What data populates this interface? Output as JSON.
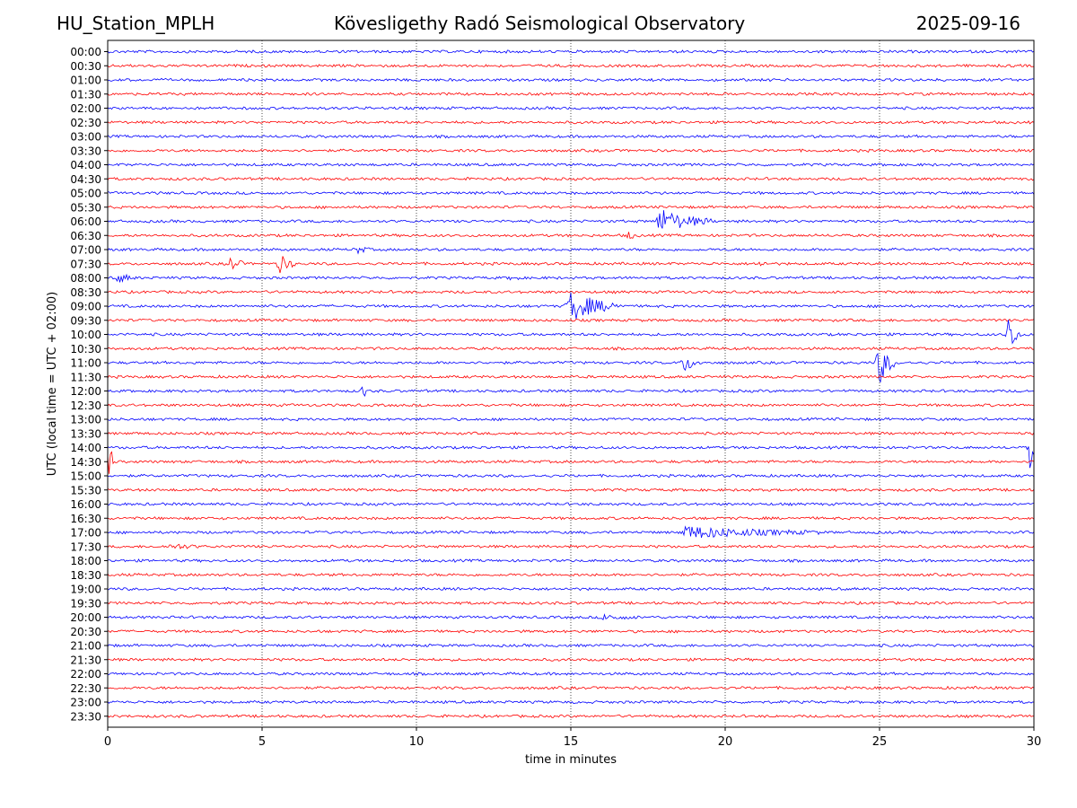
{
  "header": {
    "station": "HU_Station_MPLH",
    "title": "Kövesligethy Radó Seismological Observatory",
    "date": "2025-09-16"
  },
  "chart_data": {
    "type": "line",
    "xlabel": "time in minutes",
    "ylabel": "UTC (local time = UTC + 02:00)",
    "xlim": [
      0,
      30
    ],
    "x_ticks": [
      0,
      5,
      10,
      15,
      20,
      25,
      30
    ],
    "grid": "vertical dotted lines at x ticks",
    "colors": [
      "#0000ff",
      "#ff0000"
    ],
    "rows": [
      "00:00",
      "00:30",
      "01:00",
      "01:30",
      "02:00",
      "02:30",
      "03:00",
      "03:30",
      "04:00",
      "04:30",
      "05:00",
      "05:30",
      "06:00",
      "06:30",
      "07:00",
      "07:30",
      "08:00",
      "08:30",
      "09:00",
      "09:30",
      "10:00",
      "10:30",
      "11:00",
      "11:30",
      "12:00",
      "12:30",
      "13:00",
      "13:30",
      "14:00",
      "14:30",
      "15:00",
      "15:30",
      "16:00",
      "16:30",
      "17:00",
      "17:30",
      "18:00",
      "18:30",
      "19:00",
      "19:30",
      "20:00",
      "20:30",
      "21:00",
      "21:30",
      "22:00",
      "22:30",
      "23:00",
      "23:30"
    ],
    "events": [
      {
        "row": "06:00",
        "start": 17.8,
        "duration": 1.8,
        "amplitude": 14
      },
      {
        "row": "06:30",
        "start": 16.8,
        "duration": 0.4,
        "amplitude": 4
      },
      {
        "row": "07:00",
        "start": 8.0,
        "duration": 0.5,
        "amplitude": 4
      },
      {
        "row": "07:30",
        "start": 3.9,
        "duration": 0.5,
        "amplitude": 8
      },
      {
        "row": "07:30",
        "start": 5.5,
        "duration": 0.6,
        "amplitude": 10
      },
      {
        "row": "07:30",
        "start": 21.0,
        "duration": 0.4,
        "amplitude": 3
      },
      {
        "row": "08:00",
        "start": 0.3,
        "duration": 0.6,
        "amplitude": 5
      },
      {
        "row": "08:00",
        "start": 13.0,
        "duration": 0.4,
        "amplitude": 3
      },
      {
        "row": "09:00",
        "start": 14.85,
        "duration": 1.8,
        "amplitude": 18
      },
      {
        "row": "10:00",
        "start": 29.1,
        "duration": 0.5,
        "amplitude": 22
      },
      {
        "row": "11:00",
        "start": 18.6,
        "duration": 0.6,
        "amplitude": 10
      },
      {
        "row": "11:00",
        "start": 24.9,
        "duration": 0.6,
        "amplitude": 26
      },
      {
        "row": "12:00",
        "start": 8.2,
        "duration": 0.3,
        "amplitude": 6
      },
      {
        "row": "14:00",
        "start": 29.8,
        "duration": 0.3,
        "amplitude": 24
      },
      {
        "row": "14:30",
        "start": 0.0,
        "duration": 0.2,
        "amplitude": 22
      },
      {
        "row": "17:00",
        "start": 18.6,
        "duration": 4.5,
        "amplitude": 7
      },
      {
        "row": "17:30",
        "start": 2.0,
        "duration": 1.0,
        "amplitude": 3
      },
      {
        "row": "20:00",
        "start": 16.0,
        "duration": 1.2,
        "amplitude": 3
      }
    ]
  }
}
